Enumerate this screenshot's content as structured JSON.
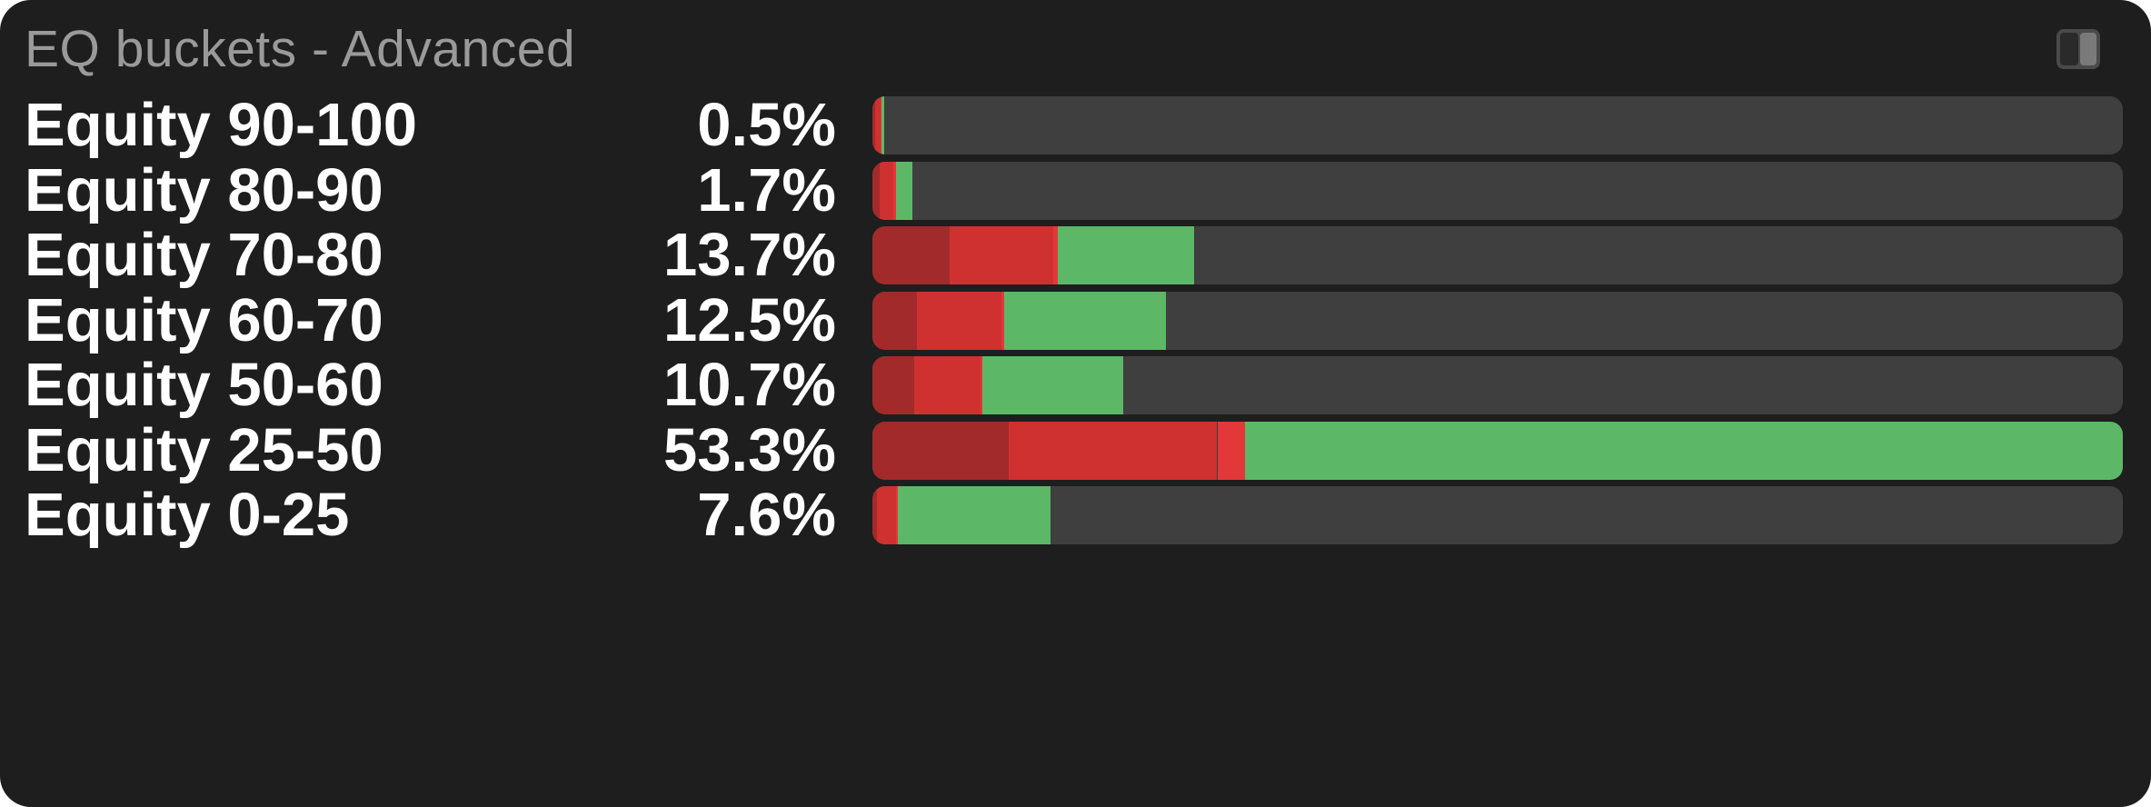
{
  "panel": {
    "title": "EQ buckets - Advanced",
    "toggle_icon": "sidebar-toggle-icon"
  },
  "colors": {
    "panel_bg": "#1e1e1e",
    "track": "#3f3f3f",
    "dark_red": "#a32a2a",
    "red": "#cf3131",
    "bright_red": "#e2383a",
    "green": "#5cb866"
  },
  "chart_data": {
    "type": "bar",
    "orientation": "horizontal",
    "stacked": true,
    "categories": [
      "Equity 90-100",
      "Equity 80-90",
      "Equity 70-80",
      "Equity 60-70",
      "Equity 50-60",
      "Equity 25-50",
      "Equity 0-25"
    ],
    "percent_labels": [
      "0.5%",
      "1.7%",
      "13.7%",
      "12.5%",
      "10.7%",
      "53.3%",
      "7.6%"
    ],
    "xlim": [
      0,
      53.3
    ],
    "segment_colors": [
      "#a32a2a",
      "#cf3131",
      "#e2383a",
      "#5cb866"
    ],
    "segments": [
      [
        0.1,
        0.25,
        0.05,
        0.1
      ],
      [
        0.3,
        0.6,
        0.1,
        0.7
      ],
      [
        3.3,
        4.4,
        0.2,
        5.8
      ],
      [
        1.9,
        3.6,
        0.1,
        6.9
      ],
      [
        1.8,
        2.8,
        0.1,
        6.0
      ],
      [
        5.8,
        8.9,
        1.2,
        37.4
      ],
      [
        0.2,
        0.8,
        0.1,
        6.5
      ]
    ],
    "values": [
      0.5,
      1.7,
      13.7,
      12.5,
      10.7,
      53.3,
      7.6
    ],
    "grid": false,
    "legend": "none"
  }
}
